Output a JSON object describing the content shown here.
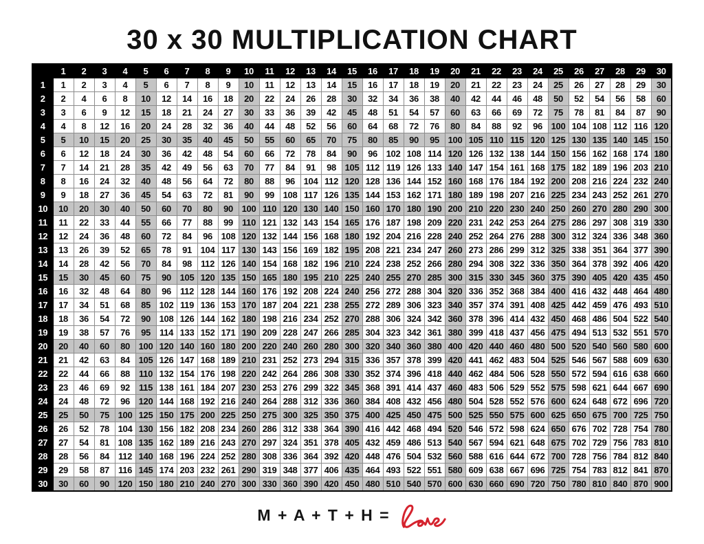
{
  "title": "30 x 30 MULTIPLICATION CHART",
  "footer": {
    "equation": "M + A + T + H =",
    "love_word": "love"
  },
  "colors": {
    "header_bg": "#000000",
    "header_text": "#ffffff",
    "shaded_cell": "#c4c4c4",
    "grid_line": "#8c8c8c",
    "love_red": "#d5232e"
  },
  "chart_data": {
    "type": "table",
    "title": "30 x 30 MULTIPLICATION CHART",
    "legend_position": "none",
    "grid": true,
    "shading_rule": "every row and column whose header is a multiple of 5 has a gray background",
    "col_headers": [
      1,
      2,
      3,
      4,
      5,
      6,
      7,
      8,
      9,
      10,
      11,
      12,
      13,
      14,
      15,
      16,
      17,
      18,
      19,
      20,
      21,
      22,
      23,
      24,
      25,
      26,
      27,
      28,
      29,
      30
    ],
    "row_headers": [
      1,
      2,
      3,
      4,
      5,
      6,
      7,
      8,
      9,
      10,
      11,
      12,
      13,
      14,
      15,
      16,
      17,
      18,
      19,
      20,
      21,
      22,
      23,
      24,
      25,
      26,
      27,
      28,
      29,
      30
    ],
    "rows": [
      [
        1,
        2,
        3,
        4,
        5,
        6,
        7,
        8,
        9,
        10,
        11,
        12,
        13,
        14,
        15,
        16,
        17,
        18,
        19,
        20,
        21,
        22,
        23,
        24,
        25,
        26,
        27,
        28,
        29,
        30
      ],
      [
        2,
        4,
        6,
        8,
        10,
        12,
        14,
        16,
        18,
        20,
        22,
        24,
        26,
        28,
        30,
        32,
        34,
        36,
        38,
        40,
        42,
        44,
        46,
        48,
        50,
        52,
        54,
        56,
        58,
        60
      ],
      [
        3,
        6,
        9,
        12,
        15,
        18,
        21,
        24,
        27,
        30,
        33,
        36,
        39,
        42,
        45,
        48,
        51,
        54,
        57,
        60,
        63,
        66,
        69,
        72,
        75,
        78,
        81,
        84,
        87,
        90
      ],
      [
        4,
        8,
        12,
        16,
        20,
        24,
        28,
        32,
        36,
        40,
        44,
        48,
        52,
        56,
        60,
        64,
        68,
        72,
        76,
        80,
        84,
        88,
        92,
        96,
        100,
        104,
        108,
        112,
        116,
        120
      ],
      [
        5,
        10,
        15,
        20,
        25,
        30,
        35,
        40,
        45,
        50,
        55,
        60,
        65,
        70,
        75,
        80,
        85,
        90,
        95,
        100,
        105,
        110,
        115,
        120,
        125,
        130,
        135,
        140,
        145,
        150
      ],
      [
        6,
        12,
        18,
        24,
        30,
        36,
        42,
        48,
        54,
        60,
        66,
        72,
        78,
        84,
        90,
        96,
        102,
        108,
        114,
        120,
        126,
        132,
        138,
        144,
        150,
        156,
        162,
        168,
        174,
        180
      ],
      [
        7,
        14,
        21,
        28,
        35,
        42,
        49,
        56,
        63,
        70,
        77,
        84,
        91,
        98,
        105,
        112,
        119,
        126,
        133,
        140,
        147,
        154,
        161,
        168,
        175,
        182,
        189,
        196,
        203,
        210
      ],
      [
        8,
        16,
        24,
        32,
        40,
        48,
        56,
        64,
        72,
        80,
        88,
        96,
        104,
        112,
        120,
        128,
        136,
        144,
        152,
        160,
        168,
        176,
        184,
        192,
        200,
        208,
        216,
        224,
        232,
        240
      ],
      [
        9,
        18,
        27,
        36,
        45,
        54,
        63,
        72,
        81,
        90,
        99,
        108,
        117,
        126,
        135,
        144,
        153,
        162,
        171,
        180,
        189,
        198,
        207,
        216,
        225,
        234,
        243,
        252,
        261,
        270
      ],
      [
        10,
        20,
        30,
        40,
        50,
        60,
        70,
        80,
        90,
        100,
        110,
        120,
        130,
        140,
        150,
        160,
        170,
        180,
        190,
        200,
        210,
        220,
        230,
        240,
        250,
        260,
        270,
        280,
        290,
        300
      ],
      [
        11,
        22,
        33,
        44,
        55,
        66,
        77,
        88,
        99,
        110,
        121,
        132,
        143,
        154,
        165,
        176,
        187,
        198,
        209,
        220,
        231,
        242,
        253,
        264,
        275,
        286,
        297,
        308,
        319,
        330
      ],
      [
        12,
        24,
        36,
        48,
        60,
        72,
        84,
        96,
        108,
        120,
        132,
        144,
        156,
        168,
        180,
        192,
        204,
        216,
        228,
        240,
        252,
        264,
        276,
        288,
        300,
        312,
        324,
        336,
        348,
        360
      ],
      [
        13,
        26,
        39,
        52,
        65,
        78,
        91,
        104,
        117,
        130,
        143,
        156,
        169,
        182,
        195,
        208,
        221,
        234,
        247,
        260,
        273,
        286,
        299,
        312,
        325,
        338,
        351,
        364,
        377,
        390
      ],
      [
        14,
        28,
        42,
        56,
        70,
        84,
        98,
        112,
        126,
        140,
        154,
        168,
        182,
        196,
        210,
        224,
        238,
        252,
        266,
        280,
        294,
        308,
        322,
        336,
        350,
        364,
        378,
        392,
        406,
        420
      ],
      [
        15,
        30,
        45,
        60,
        75,
        90,
        105,
        120,
        135,
        150,
        165,
        180,
        195,
        210,
        225,
        240,
        255,
        270,
        285,
        300,
        315,
        330,
        345,
        360,
        375,
        390,
        405,
        420,
        435,
        450
      ],
      [
        16,
        32,
        48,
        64,
        80,
        96,
        112,
        128,
        144,
        160,
        176,
        192,
        208,
        224,
        240,
        256,
        272,
        288,
        304,
        320,
        336,
        352,
        368,
        384,
        400,
        416,
        432,
        448,
        464,
        480
      ],
      [
        17,
        34,
        51,
        68,
        85,
        102,
        119,
        136,
        153,
        170,
        187,
        204,
        221,
        238,
        255,
        272,
        289,
        306,
        323,
        340,
        357,
        374,
        391,
        408,
        425,
        442,
        459,
        476,
        493,
        510
      ],
      [
        18,
        36,
        54,
        72,
        90,
        108,
        126,
        144,
        162,
        180,
        198,
        216,
        234,
        252,
        270,
        288,
        306,
        324,
        342,
        360,
        378,
        396,
        414,
        432,
        450,
        468,
        486,
        504,
        522,
        540
      ],
      [
        19,
        38,
        57,
        76,
        95,
        114,
        133,
        152,
        171,
        190,
        209,
        228,
        247,
        266,
        285,
        304,
        323,
        342,
        361,
        380,
        399,
        418,
        437,
        456,
        475,
        494,
        513,
        532,
        551,
        570
      ],
      [
        20,
        40,
        60,
        80,
        100,
        120,
        140,
        160,
        180,
        200,
        220,
        240,
        260,
        280,
        300,
        320,
        340,
        360,
        380,
        400,
        420,
        440,
        460,
        480,
        500,
        520,
        540,
        560,
        580,
        600
      ],
      [
        21,
        42,
        63,
        84,
        105,
        126,
        147,
        168,
        189,
        210,
        231,
        252,
        273,
        294,
        315,
        336,
        357,
        378,
        399,
        420,
        441,
        462,
        483,
        504,
        525,
        546,
        567,
        588,
        609,
        630
      ],
      [
        22,
        44,
        66,
        88,
        110,
        132,
        154,
        176,
        198,
        220,
        242,
        264,
        286,
        308,
        330,
        352,
        374,
        396,
        418,
        440,
        462,
        484,
        506,
        528,
        550,
        572,
        594,
        616,
        638,
        660
      ],
      [
        23,
        46,
        69,
        92,
        115,
        138,
        161,
        184,
        207,
        230,
        253,
        276,
        299,
        322,
        345,
        368,
        391,
        414,
        437,
        460,
        483,
        506,
        529,
        552,
        575,
        598,
        621,
        644,
        667,
        690
      ],
      [
        24,
        48,
        72,
        96,
        120,
        144,
        168,
        192,
        216,
        240,
        264,
        288,
        312,
        336,
        360,
        384,
        408,
        432,
        456,
        480,
        504,
        528,
        552,
        576,
        600,
        624,
        648,
        672,
        696,
        720
      ],
      [
        25,
        50,
        75,
        100,
        125,
        150,
        175,
        200,
        225,
        250,
        275,
        300,
        325,
        350,
        375,
        400,
        425,
        450,
        475,
        500,
        525,
        550,
        575,
        600,
        625,
        650,
        675,
        700,
        725,
        750
      ],
      [
        26,
        52,
        78,
        104,
        130,
        156,
        182,
        208,
        234,
        260,
        286,
        312,
        338,
        364,
        390,
        416,
        442,
        468,
        494,
        520,
        546,
        572,
        598,
        624,
        650,
        676,
        702,
        728,
        754,
        780
      ],
      [
        27,
        54,
        81,
        108,
        135,
        162,
        189,
        216,
        243,
        270,
        297,
        324,
        351,
        378,
        405,
        432,
        459,
        486,
        513,
        540,
        567,
        594,
        621,
        648,
        675,
        702,
        729,
        756,
        783,
        810
      ],
      [
        28,
        56,
        84,
        112,
        140,
        168,
        196,
        224,
        252,
        280,
        308,
        336,
        364,
        392,
        420,
        448,
        476,
        504,
        532,
        560,
        588,
        616,
        644,
        672,
        700,
        728,
        756,
        784,
        812,
        840
      ],
      [
        29,
        58,
        87,
        116,
        145,
        174,
        203,
        232,
        261,
        290,
        319,
        348,
        377,
        406,
        435,
        464,
        493,
        522,
        551,
        580,
        609,
        638,
        667,
        696,
        725,
        754,
        783,
        812,
        841,
        870
      ],
      [
        30,
        60,
        90,
        120,
        150,
        180,
        210,
        240,
        270,
        300,
        330,
        360,
        390,
        420,
        450,
        480,
        510,
        540,
        570,
        600,
        630,
        660,
        690,
        720,
        750,
        780,
        810,
        840,
        870,
        900
      ]
    ]
  }
}
